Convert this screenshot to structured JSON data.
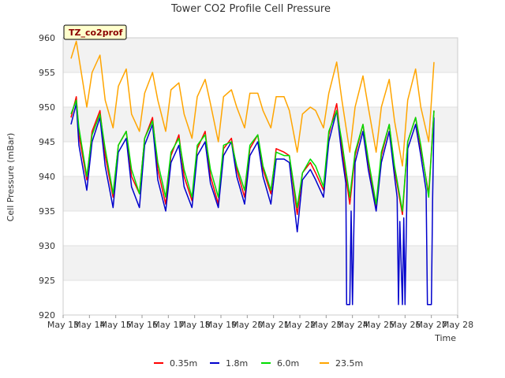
{
  "chart_data": {
    "type": "line",
    "title": "Tower CO2 Profile Cell Pressure",
    "xlabel": "Time",
    "ylabel": "Cell Pressure (mBar)",
    "site_label": "TZ_co2prof",
    "ylim": [
      920,
      960
    ],
    "xlim": [
      13,
      28
    ],
    "grid": true,
    "legend_position": "bottom",
    "y_ticks": [
      "920",
      "925",
      "930",
      "935",
      "940",
      "945",
      "950",
      "955",
      "960"
    ],
    "x_ticks": [
      {
        "x": 13,
        "label": "May 13"
      },
      {
        "x": 14,
        "label": "May 14"
      },
      {
        "x": 15,
        "label": "May 15"
      },
      {
        "x": 16,
        "label": "May 16"
      },
      {
        "x": 17,
        "label": "May 17"
      },
      {
        "x": 18,
        "label": "May 18"
      },
      {
        "x": 19,
        "label": "May 19"
      },
      {
        "x": 20,
        "label": "May 20"
      },
      {
        "x": 21,
        "label": "May 21"
      },
      {
        "x": 22,
        "label": "May 22"
      },
      {
        "x": 23,
        "label": "May 23"
      },
      {
        "x": 24,
        "label": "May 24"
      },
      {
        "x": 25,
        "label": "May 25"
      },
      {
        "x": 26,
        "label": "May 26"
      },
      {
        "x": 27,
        "label": "May 27"
      },
      {
        "x": 28,
        "label": "May 28"
      }
    ],
    "series": [
      {
        "name": "0.35m",
        "color": "#ff0000",
        "x": [
          13.3,
          13.5,
          13.6,
          13.9,
          14.1,
          14.4,
          14.6,
          14.9,
          15.1,
          15.4,
          15.6,
          15.9,
          16.1,
          16.4,
          16.6,
          16.9,
          17.1,
          17.4,
          17.6,
          17.9,
          18.1,
          18.4,
          18.6,
          18.9,
          19.1,
          19.4,
          19.6,
          19.9,
          20.1,
          20.4,
          20.6,
          20.9,
          21.1,
          21.4,
          21.6,
          21.9,
          22.1,
          22.4,
          22.6,
          22.9,
          23.1,
          23.4,
          23.6,
          23.9,
          24.1,
          24.4,
          24.6,
          24.9,
          25.1,
          25.4,
          25.6,
          25.9,
          26.1,
          26.4,
          26.6,
          26.9,
          27.1
        ],
        "y": [
          948.5,
          951.5,
          946,
          939.5,
          946.5,
          949.5,
          943,
          937,
          944.5,
          946.5,
          940,
          937.5,
          945.5,
          948.5,
          941,
          936,
          943,
          946,
          940,
          936.5,
          944,
          946.5,
          940,
          936,
          944,
          945.5,
          941,
          937,
          944,
          946,
          941,
          937.5,
          944,
          943.5,
          943,
          934.5,
          940.5,
          942,
          940.5,
          938,
          946,
          950.5,
          944,
          936,
          943,
          947.5,
          942,
          935.5,
          943,
          947.5,
          941,
          934.5,
          945,
          948.5,
          944,
          937.5,
          949.5
        ]
      },
      {
        "name": "1.8m",
        "color": "#0000cc",
        "x": [
          13.3,
          13.5,
          13.6,
          13.9,
          14.1,
          14.4,
          14.6,
          14.9,
          15.1,
          15.4,
          15.6,
          15.9,
          16.1,
          16.4,
          16.6,
          16.9,
          17.1,
          17.4,
          17.6,
          17.9,
          18.1,
          18.4,
          18.6,
          18.9,
          19.1,
          19.4,
          19.6,
          19.9,
          20.1,
          20.4,
          20.6,
          20.9,
          21.1,
          21.4,
          21.6,
          21.9,
          22.1,
          22.4,
          22.6,
          22.9,
          23.1,
          23.4,
          23.6,
          23.75,
          23.78,
          23.9,
          23.95,
          24.0,
          24.1,
          24.4,
          24.6,
          24.9,
          25.1,
          25.4,
          25.6,
          25.7,
          25.75,
          25.8,
          25.9,
          25.95,
          26.0,
          26.1,
          26.4,
          26.6,
          26.8,
          26.85,
          27.0,
          27.05,
          27.1
        ],
        "y": [
          947.5,
          950.5,
          944.5,
          938,
          945,
          948.5,
          941.5,
          935.5,
          943.5,
          945.5,
          938.5,
          935.5,
          944.5,
          947.5,
          939.5,
          935,
          942,
          944.5,
          938.5,
          935.5,
          943,
          945,
          939,
          935.5,
          943,
          945,
          940,
          936,
          943,
          945,
          940,
          936,
          942.5,
          942.5,
          942,
          932,
          939.5,
          941,
          939.5,
          937,
          945,
          949.5,
          943,
          939,
          921.5,
          921.5,
          935,
          921.5,
          942,
          946.5,
          941,
          935,
          942,
          946.5,
          940,
          937,
          921.5,
          933.5,
          921.5,
          934,
          921.5,
          944,
          947.5,
          943,
          938,
          921.5,
          921.5,
          937,
          948.5
        ]
      },
      {
        "name": "6.0m",
        "color": "#00dd00",
        "x": [
          13.3,
          13.5,
          13.6,
          13.9,
          14.1,
          14.4,
          14.6,
          14.9,
          15.1,
          15.4,
          15.6,
          15.9,
          16.1,
          16.4,
          16.6,
          16.9,
          17.1,
          17.4,
          17.6,
          17.9,
          18.1,
          18.4,
          18.6,
          18.9,
          19.1,
          19.4,
          19.6,
          19.9,
          20.1,
          20.4,
          20.6,
          20.9,
          21.1,
          21.4,
          21.6,
          21.9,
          22.1,
          22.4,
          22.6,
          22.9,
          23.1,
          23.4,
          23.6,
          23.9,
          24.1,
          24.4,
          24.6,
          24.9,
          25.1,
          25.4,
          25.6,
          25.9,
          26.1,
          26.4,
          26.6,
          26.9,
          27.1
        ],
        "y": [
          949,
          951,
          947,
          940,
          946,
          949,
          944,
          937.5,
          944.5,
          946.5,
          941,
          937.5,
          945.5,
          948,
          942,
          937,
          943.5,
          945.5,
          941,
          937,
          944.5,
          946,
          941,
          937,
          944.5,
          945,
          941.5,
          938,
          944.5,
          946,
          941.5,
          938,
          943.5,
          943,
          943,
          935.5,
          940.5,
          942.5,
          941.5,
          938.5,
          946.5,
          949.5,
          945,
          937,
          943.5,
          947.5,
          942.5,
          936,
          943.5,
          947.5,
          941.5,
          935,
          945,
          948.5,
          944.5,
          937,
          949.5
        ]
      },
      {
        "name": "23.5m",
        "color": "#ffa500",
        "x": [
          13.3,
          13.5,
          13.9,
          14.1,
          14.4,
          14.6,
          14.9,
          15.1,
          15.4,
          15.6,
          15.9,
          16.1,
          16.4,
          16.6,
          16.9,
          17.1,
          17.4,
          17.6,
          17.9,
          18.1,
          18.4,
          18.6,
          18.9,
          19.1,
          19.4,
          19.6,
          19.9,
          20.1,
          20.4,
          20.6,
          20.9,
          21.1,
          21.4,
          21.6,
          21.9,
          22.1,
          22.4,
          22.6,
          22.9,
          23.1,
          23.4,
          23.6,
          23.9,
          24.1,
          24.4,
          24.6,
          24.9,
          25.1,
          25.4,
          25.6,
          25.9,
          26.1,
          26.4,
          26.6,
          26.9,
          27.1
        ],
        "y": [
          957,
          959.5,
          950,
          955,
          957.5,
          951,
          947,
          953,
          955.5,
          949,
          946.5,
          952,
          955,
          951,
          946.5,
          952.5,
          953.5,
          949,
          945.5,
          951.5,
          954,
          950.5,
          945,
          951.5,
          952.5,
          950,
          947,
          952,
          952,
          949.5,
          947,
          951.5,
          951.5,
          949.5,
          943.5,
          949,
          950,
          949.5,
          947,
          952,
          956.5,
          951,
          943.5,
          950,
          954.5,
          950,
          943.5,
          950,
          954,
          948,
          941.5,
          951,
          955.5,
          950,
          945,
          956.5
        ]
      }
    ]
  }
}
